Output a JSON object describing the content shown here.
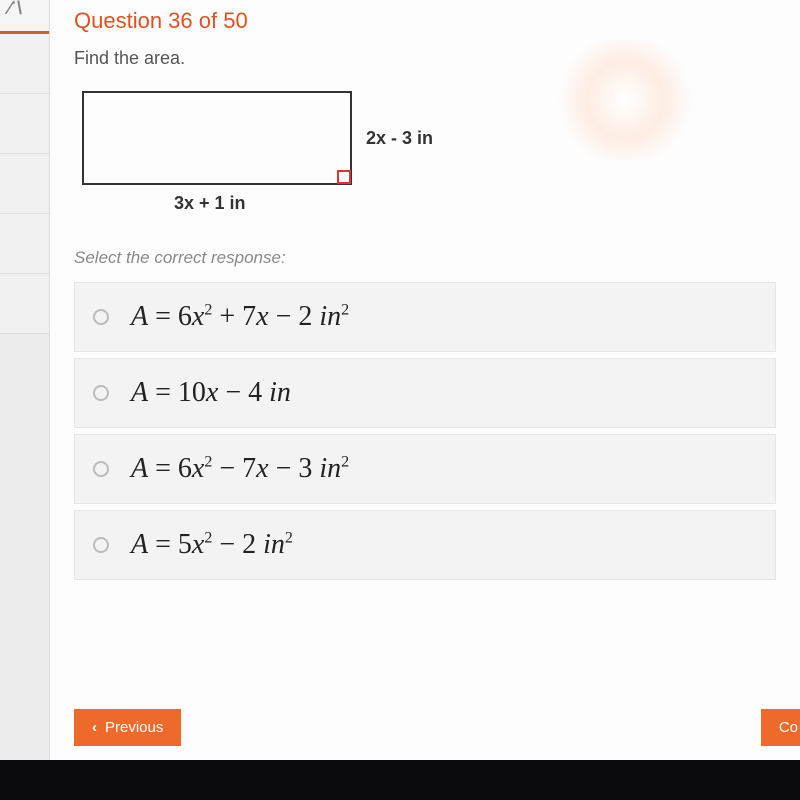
{
  "header": {
    "question_label": "Question 36 of 50",
    "prompt": "Find the area."
  },
  "figure": {
    "width_label": "3x + 1 in",
    "height_label": "2x - 3 in"
  },
  "select_prompt": "Select the correct response:",
  "options": [
    {
      "prefix": "A = 6",
      "x2": true,
      "mid1": " + 7",
      "x1": true,
      "mid2": " − 2 ",
      "unit": "in",
      "unit_sup": "2"
    },
    {
      "prefix": "A = 10",
      "x2": false,
      "mid1": "",
      "x1": true,
      "mid2": " − 4 ",
      "unit": "in",
      "unit_sup": ""
    },
    {
      "prefix": "A = 6",
      "x2": true,
      "mid1": " − 7",
      "x1": true,
      "mid2": " − 3 ",
      "unit": "in",
      "unit_sup": "2"
    },
    {
      "prefix": "A = 5",
      "x2": true,
      "mid1": "",
      "x1": false,
      "mid2": " − 2 ",
      "unit": "in",
      "unit_sup": "2"
    }
  ],
  "buttons": {
    "previous": "Previous",
    "continue": "Co"
  },
  "colors": {
    "accent": "#e0521f",
    "button": "#ed6a2a",
    "option_bg": "#f3f3f3"
  }
}
